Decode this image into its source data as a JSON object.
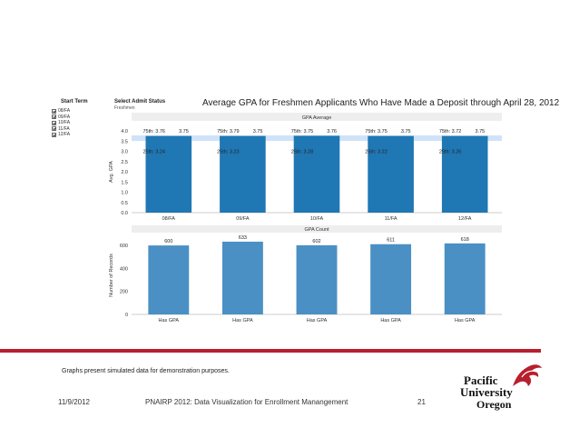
{
  "filters": {
    "term_title": "Start Term",
    "terms": [
      "08/FA",
      "09/FA",
      "10/FA",
      "11/FA",
      "12/FA"
    ],
    "status_title": "Select Admit Status",
    "status_value": "Freshmen"
  },
  "chart_data": [
    {
      "type": "bar",
      "title": "Average GPA for Freshmen Applicants Who Have Made a Deposit through April 28, 2012",
      "panel_title": "GPA Average",
      "ylabel": "Avg. GPA",
      "categories": [
        "08/FA",
        "09/FA",
        "10/FA",
        "11/FA",
        "12/FA"
      ],
      "values": [
        3.75,
        3.75,
        3.76,
        3.75,
        3.75
      ],
      "value_labels": [
        "3.75",
        "3.75",
        "3.76",
        "3.75",
        "3.75"
      ],
      "p75_labels": [
        "75th: 3.76",
        "75th: 3.79",
        "75th: 3.75",
        "75th: 3.75",
        "75th: 3.72"
      ],
      "p25_labels": [
        "25th: 3.24",
        "25th: 3.23",
        "25th: 3.28",
        "25th: 3.22",
        "25th: 3.26"
      ],
      "p25": [
        3.24,
        3.23,
        3.28,
        3.22,
        3.26
      ],
      "p75": [
        3.76,
        3.79,
        3.75,
        3.75,
        3.72
      ],
      "yticks": [
        "0.0",
        "0.5",
        "1.0",
        "1.5",
        "2.0",
        "2.5",
        "3.0",
        "3.5",
        "4.0"
      ],
      "ylim": [
        0,
        4
      ],
      "color": "#1f77b4",
      "band_color": "#cfe2f8"
    },
    {
      "type": "bar",
      "panel_title": "GPA Count",
      "ylabel": "Number of Records",
      "categories": [
        "Has GPA",
        "Has GPA",
        "Has GPA",
        "Has GPA",
        "Has GPA"
      ],
      "values": [
        600,
        633,
        602,
        611,
        618
      ],
      "yticks": [
        "0",
        "200",
        "400",
        "600"
      ],
      "ylim": [
        0,
        680
      ],
      "color": "#4a90c4"
    }
  ],
  "footer": {
    "note": "Graphs present simulated data for demonstration purposes.",
    "date": "11/9/2012",
    "event": "PNAIRP 2012: Data Visualization for Enrollment Manangement",
    "page": "21"
  },
  "logo": {
    "line1": "Pacific",
    "line2": "University",
    "line3": "Oregon",
    "color": "#b81f2d"
  }
}
